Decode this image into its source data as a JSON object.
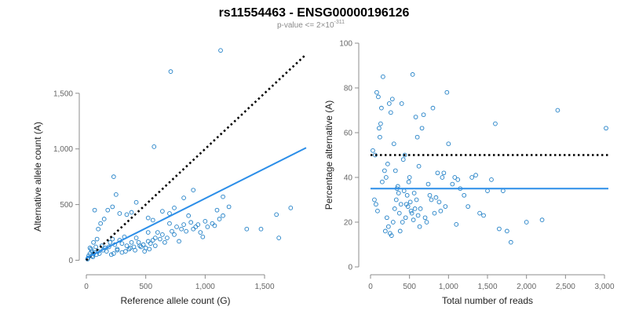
{
  "figure": {
    "title": "rs11554463 - ENSG00000196126",
    "subtitle_prefix": "p-value <= 2×10",
    "subtitle_exponent": "-311"
  },
  "colors": {
    "points": "#1f7fc6",
    "fit_line": "#2c8ee8",
    "reference_line": "#000000",
    "axis": "#8c8c8c"
  },
  "chart_data": [
    {
      "type": "scatter",
      "xlabel": "Reference allele count (G)",
      "ylabel": "Alternative allele count (A)",
      "xlim": [
        0,
        1850
      ],
      "ylim": [
        -60,
        1950
      ],
      "xticks": [
        0,
        500,
        1000,
        1500
      ],
      "xtick_labels": [
        "0",
        "500",
        "1,000",
        "1,500"
      ],
      "yticks": [
        0,
        500,
        1000,
        1500
      ],
      "ytick_labels": [
        "0",
        "500",
        "1,000",
        "1,500"
      ],
      "fit_line": {
        "x": [
          0,
          1850
        ],
        "y": [
          20,
          1010
        ],
        "style": "solid"
      },
      "reference_line": {
        "x": [
          0,
          1850
        ],
        "y": [
          0,
          1850
        ],
        "style": "dotted"
      },
      "points": [
        [
          1130,
          1885
        ],
        [
          710,
          1695
        ],
        [
          570,
          1020
        ],
        [
          230,
          750
        ],
        [
          1200,
          480
        ],
        [
          1350,
          280
        ],
        [
          1470,
          280
        ],
        [
          1600,
          410
        ],
        [
          1620,
          200
        ],
        [
          1720,
          470
        ],
        [
          1100,
          450
        ],
        [
          1150,
          570
        ],
        [
          900,
          630
        ],
        [
          820,
          560
        ],
        [
          740,
          470
        ],
        [
          700,
          420
        ],
        [
          640,
          440
        ],
        [
          560,
          360
        ],
        [
          520,
          380
        ],
        [
          520,
          250
        ],
        [
          420,
          520
        ],
        [
          380,
          430
        ],
        [
          340,
          410
        ],
        [
          280,
          420
        ],
        [
          250,
          590
        ],
        [
          220,
          480
        ],
        [
          180,
          450
        ],
        [
          150,
          370
        ],
        [
          120,
          330
        ],
        [
          100,
          280
        ],
        [
          70,
          450
        ],
        [
          80,
          120
        ],
        [
          60,
          160
        ],
        [
          40,
          100
        ],
        [
          30,
          60
        ],
        [
          20,
          40
        ],
        [
          15,
          20
        ],
        [
          10,
          10
        ],
        [
          50,
          40
        ],
        [
          60,
          60
        ],
        [
          90,
          190
        ],
        [
          100,
          80
        ],
        [
          130,
          130
        ],
        [
          160,
          110
        ],
        [
          200,
          160
        ],
        [
          220,
          190
        ],
        [
          240,
          140
        ],
        [
          260,
          90
        ],
        [
          280,
          180
        ],
        [
          300,
          150
        ],
        [
          320,
          210
        ],
        [
          340,
          130
        ],
        [
          360,
          100
        ],
        [
          380,
          160
        ],
        [
          400,
          120
        ],
        [
          420,
          200
        ],
        [
          440,
          160
        ],
        [
          460,
          120
        ],
        [
          480,
          140
        ],
        [
          500,
          110
        ],
        [
          520,
          170
        ],
        [
          540,
          150
        ],
        [
          560,
          180
        ],
        [
          580,
          130
        ],
        [
          600,
          250
        ],
        [
          620,
          190
        ],
        [
          640,
          230
        ],
        [
          660,
          160
        ],
        [
          680,
          200
        ],
        [
          700,
          330
        ],
        [
          720,
          260
        ],
        [
          740,
          230
        ],
        [
          760,
          300
        ],
        [
          780,
          170
        ],
        [
          800,
          280
        ],
        [
          820,
          320
        ],
        [
          840,
          260
        ],
        [
          860,
          400
        ],
        [
          880,
          340
        ],
        [
          900,
          280
        ],
        [
          920,
          300
        ],
        [
          940,
          320
        ],
        [
          960,
          250
        ],
        [
          980,
          210
        ],
        [
          1000,
          350
        ],
        [
          1020,
          300
        ],
        [
          1060,
          330
        ],
        [
          1080,
          310
        ],
        [
          1120,
          370
        ],
        [
          1150,
          400
        ],
        [
          30,
          110
        ],
        [
          45,
          80
        ],
        [
          55,
          30
        ],
        [
          70,
          70
        ],
        [
          85,
          50
        ],
        [
          110,
          60
        ],
        [
          140,
          90
        ],
        [
          170,
          80
        ],
        [
          190,
          120
        ],
        [
          210,
          50
        ],
        [
          230,
          60
        ],
        [
          260,
          100
        ],
        [
          300,
          70
        ],
        [
          330,
          80
        ],
        [
          370,
          110
        ],
        [
          410,
          90
        ],
        [
          450,
          130
        ],
        [
          490,
          80
        ],
        [
          530,
          100
        ],
        [
          580,
          200
        ]
      ]
    },
    {
      "type": "scatter",
      "xlabel": "Total number of reads",
      "ylabel": "Percentage alternative (A)",
      "xlim": [
        -20,
        3050
      ],
      "ylim": [
        0,
        100
      ],
      "xticks": [
        0,
        500,
        1000,
        1500,
        2000,
        2500,
        3000
      ],
      "xtick_labels": [
        "0",
        "500",
        "1,000",
        "1,500",
        "2,000",
        "2,500",
        "3,000"
      ],
      "yticks": [
        0,
        20,
        40,
        60,
        80,
        100
      ],
      "ytick_labels": [
        "0",
        "20",
        "40",
        "60",
        "80",
        "100"
      ],
      "fit_line": {
        "x": [
          0,
          3050
        ],
        "y": [
          35,
          35
        ],
        "style": "solid"
      },
      "reference_line": {
        "x": [
          0,
          3050
        ],
        "y": [
          50,
          50
        ],
        "style": "dotted"
      },
      "points": [
        [
          30,
          52
        ],
        [
          60,
          50
        ],
        [
          80,
          78
        ],
        [
          100,
          76
        ],
        [
          110,
          62
        ],
        [
          120,
          58
        ],
        [
          130,
          64
        ],
        [
          140,
          71
        ],
        [
          160,
          85
        ],
        [
          180,
          43
        ],
        [
          200,
          40
        ],
        [
          220,
          46
        ],
        [
          240,
          73
        ],
        [
          260,
          69
        ],
        [
          280,
          75
        ],
        [
          300,
          55
        ],
        [
          320,
          43
        ],
        [
          340,
          35
        ],
        [
          360,
          33
        ],
        [
          380,
          16
        ],
        [
          400,
          73
        ],
        [
          420,
          48
        ],
        [
          440,
          50
        ],
        [
          460,
          28
        ],
        [
          480,
          27
        ],
        [
          500,
          40
        ],
        [
          520,
          25
        ],
        [
          540,
          86
        ],
        [
          560,
          33
        ],
        [
          580,
          67
        ],
        [
          600,
          58
        ],
        [
          620,
          45
        ],
        [
          640,
          26
        ],
        [
          660,
          62
        ],
        [
          680,
          68
        ],
        [
          700,
          22
        ],
        [
          720,
          20
        ],
        [
          740,
          37
        ],
        [
          760,
          32
        ],
        [
          780,
          30
        ],
        [
          800,
          71
        ],
        [
          820,
          24
        ],
        [
          840,
          31
        ],
        [
          860,
          42
        ],
        [
          880,
          29
        ],
        [
          900,
          25
        ],
        [
          920,
          40
        ],
        [
          940,
          42
        ],
        [
          960,
          27
        ],
        [
          980,
          78
        ],
        [
          1000,
          55
        ],
        [
          1050,
          37
        ],
        [
          1080,
          40
        ],
        [
          1100,
          19
        ],
        [
          1120,
          39
        ],
        [
          1150,
          35
        ],
        [
          1200,
          32
        ],
        [
          1250,
          27
        ],
        [
          1300,
          40
        ],
        [
          1350,
          41
        ],
        [
          1400,
          24
        ],
        [
          1450,
          23
        ],
        [
          1500,
          34
        ],
        [
          1550,
          39
        ],
        [
          1600,
          64
        ],
        [
          1650,
          17
        ],
        [
          1700,
          34
        ],
        [
          1750,
          16
        ],
        [
          1800,
          11
        ],
        [
          2000,
          20
        ],
        [
          2200,
          21
        ],
        [
          2400,
          70
        ],
        [
          3020,
          62
        ],
        [
          50,
          30
        ],
        [
          70,
          28
        ],
        [
          90,
          25
        ],
        [
          150,
          38
        ],
        [
          190,
          16
        ],
        [
          210,
          22
        ],
        [
          230,
          18
        ],
        [
          250,
          15
        ],
        [
          270,
          14
        ],
        [
          290,
          20
        ],
        [
          310,
          26
        ],
        [
          330,
          30
        ],
        [
          350,
          36
        ],
        [
          370,
          24
        ],
        [
          390,
          28
        ],
        [
          410,
          20
        ],
        [
          430,
          34
        ],
        [
          450,
          22
        ],
        [
          470,
          32
        ],
        [
          490,
          38
        ],
        [
          510,
          29
        ],
        [
          530,
          24
        ],
        [
          550,
          21
        ],
        [
          570,
          26
        ],
        [
          590,
          30
        ],
        [
          610,
          23
        ],
        [
          630,
          18
        ]
      ]
    }
  ]
}
